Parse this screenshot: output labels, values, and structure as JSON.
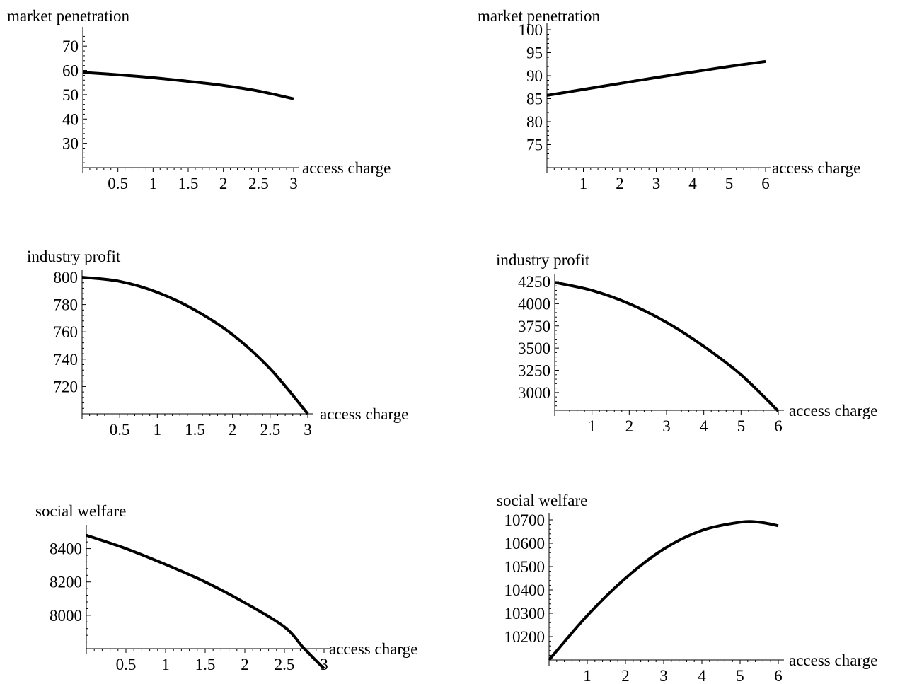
{
  "chart_data": [
    {
      "type": "line",
      "ylabel": "market penetration",
      "xlabel": "access charge",
      "xlim": [
        0,
        3
      ],
      "ylim": [
        20,
        75
      ],
      "xticks": [
        "0.5",
        "1",
        "1.5",
        "2",
        "2.5",
        "3"
      ],
      "yticks": [
        "30",
        "40",
        "50",
        "60",
        "70"
      ],
      "series": [
        {
          "x": [
            0,
            0.5,
            1,
            1.5,
            2,
            2.5,
            3
          ],
          "values": [
            59.2,
            58.2,
            57.0,
            55.5,
            53.8,
            51.5,
            48.3
          ]
        }
      ]
    },
    {
      "type": "line",
      "ylabel": "market penetration",
      "xlabel": "access charge",
      "xlim": [
        0,
        6
      ],
      "ylim": [
        70,
        100
      ],
      "xticks": [
        "1",
        "2",
        "3",
        "4",
        "5",
        "6"
      ],
      "yticks": [
        "75",
        "80",
        "85",
        "90",
        "95",
        "100"
      ],
      "series": [
        {
          "x": [
            0,
            1,
            2,
            3,
            4,
            5,
            6
          ],
          "values": [
            85.7,
            87.0,
            88.3,
            89.6,
            90.8,
            92.0,
            93.1
          ]
        }
      ]
    },
    {
      "type": "line",
      "ylabel": "industry profit",
      "xlabel": "access charge",
      "xlim": [
        0,
        3
      ],
      "ylim": [
        700,
        800
      ],
      "xticks": [
        "0.5",
        "1",
        "1.5",
        "2",
        "2.5",
        "3"
      ],
      "yticks": [
        "720",
        "740",
        "760",
        "780",
        "800"
      ],
      "series": [
        {
          "x": [
            0,
            0.5,
            1,
            1.5,
            2,
            2.5,
            3
          ],
          "values": [
            800,
            797,
            789,
            776,
            758,
            733,
            700
          ]
        }
      ]
    },
    {
      "type": "line",
      "ylabel": "industry profit",
      "xlabel": "access charge",
      "xlim": [
        0,
        6
      ],
      "ylim": [
        2800,
        4250
      ],
      "xticks": [
        "1",
        "2",
        "3",
        "4",
        "5",
        "6"
      ],
      "yticks": [
        "3000",
        "3250",
        "3500",
        "3750",
        "4000",
        "4250"
      ],
      "series": [
        {
          "x": [
            0,
            1,
            2,
            3,
            4,
            5,
            6
          ],
          "values": [
            4240,
            4150,
            4000,
            3790,
            3520,
            3200,
            2790
          ]
        }
      ]
    },
    {
      "type": "line",
      "ylabel": "social welfare",
      "xlabel": "access charge",
      "xlim": [
        0,
        3
      ],
      "ylim": [
        7800,
        8500
      ],
      "xticks": [
        "0.5",
        "1",
        "1.5",
        "2",
        "2.5",
        "3"
      ],
      "yticks": [
        "8000",
        "8200",
        "8400"
      ],
      "series": [
        {
          "x": [
            0,
            0.5,
            1,
            1.5,
            2,
            2.5,
            2.75,
            3
          ],
          "values": [
            8480,
            8400,
            8305,
            8200,
            8075,
            7930,
            7800,
            7680
          ]
        }
      ]
    },
    {
      "type": "line",
      "ylabel": "social welfare",
      "xlabel": "access charge",
      "xlim": [
        0,
        6
      ],
      "ylim": [
        10100,
        10700
      ],
      "xticks": [
        "1",
        "2",
        "3",
        "4",
        "5",
        "6"
      ],
      "yticks": [
        "10200",
        "10300",
        "10400",
        "10500",
        "10600",
        "10700"
      ],
      "series": [
        {
          "x": [
            0,
            1,
            2,
            3,
            4,
            5,
            5.5,
            6
          ],
          "values": [
            10100,
            10290,
            10450,
            10575,
            10655,
            10690,
            10690,
            10675
          ]
        }
      ]
    }
  ]
}
